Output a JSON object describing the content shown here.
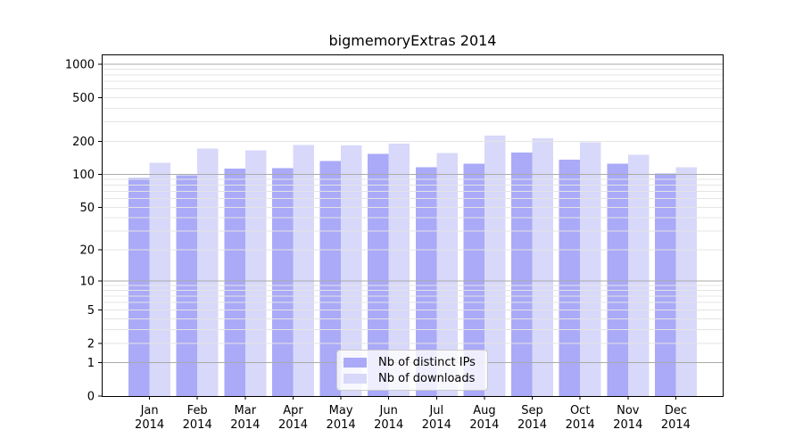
{
  "chart_data": {
    "type": "bar",
    "title": "bigmemoryExtras 2014",
    "xlabel": "",
    "ylabel": "",
    "categories": [
      "Jan 2014",
      "Feb 2014",
      "Mar 2014",
      "Apr 2014",
      "May 2014",
      "Jun 2014",
      "Jul 2014",
      "Aug 2014",
      "Sep 2014",
      "Oct 2014",
      "Nov 2014",
      "Dec 2014"
    ],
    "series": [
      {
        "name": "Nb of distinct IPs",
        "color": "#aaaaf8",
        "values": [
          93,
          98,
          113,
          114,
          133,
          154,
          116,
          125,
          158,
          136,
          125,
          102
        ]
      },
      {
        "name": "Nb of downloads",
        "color": "#d8d8fa",
        "values": [
          127,
          172,
          166,
          185,
          183,
          191,
          157,
          225,
          214,
          197,
          151,
          116
        ]
      }
    ],
    "yticks": [
      0,
      1,
      2,
      5,
      10,
      20,
      50,
      100,
      200,
      500,
      1000
    ],
    "scale": {
      "type": "log1p",
      "y_transform": "log10(1+y)",
      "ylim": [
        0,
        1226
      ]
    },
    "grid": {
      "major_color": "#aaaaaa",
      "minor_color": "#e4e4e4",
      "major_at": [
        1,
        10,
        100,
        1000
      ]
    },
    "axis_color": "#000000",
    "legend": {
      "position": "bottom-center"
    }
  }
}
